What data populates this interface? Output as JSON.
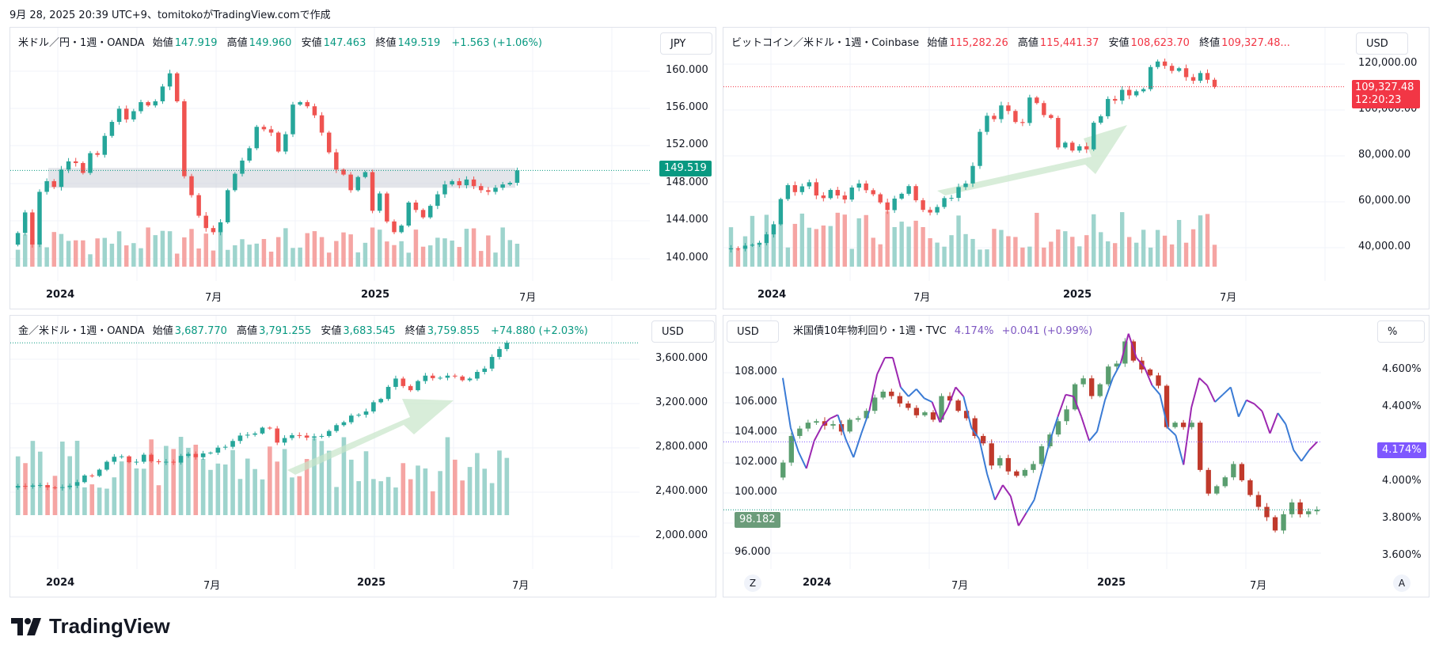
{
  "header": {
    "caption": "9月 28, 2025 20:39 UTC+9、tomitokoがTradingView.comで作成"
  },
  "footer": {
    "logo_text": "TradingView"
  },
  "colors": {
    "up": "#26a69a",
    "down": "#ef5350",
    "vol_up": "#9ed4cd",
    "vol_down": "#f5a5a3",
    "grid": "#f0f3fa",
    "accent": "#089981"
  },
  "panels": {
    "usdjpy": {
      "title": "米ドル／円・1週・OANDA",
      "o_label": "始値",
      "o": "147.919",
      "h_label": "高値",
      "h": "149.960",
      "l_label": "安値",
      "l": "147.463",
      "c_label": "終値",
      "c": "149.519",
      "change": "+1.563 (+1.06%)",
      "currency": "JPY",
      "last_price": "149.519",
      "y_labels": [
        "160.000",
        "156.000",
        "152.000",
        "148.000",
        "144.000",
        "140.000"
      ],
      "x_labels": [
        "2024",
        "7月",
        "2025",
        "7月"
      ]
    },
    "btcusd": {
      "title": "ビットコイン／米ドル・1週・Coinbase",
      "o_label": "始値",
      "o": "115,282.26",
      "h_label": "高値",
      "h": "115,441.37",
      "l_label": "安値",
      "l": "108,623.70",
      "c_label": "終値",
      "c": "109,327.48...",
      "currency": "USD",
      "last_price": "109,327.48",
      "countdown": "12:20:23",
      "y_labels": [
        "120,000.00",
        "100,000.00",
        "80,000.00",
        "60,000.00",
        "40,000.00"
      ],
      "x_labels": [
        "2024",
        "7月",
        "2025",
        "7月"
      ]
    },
    "xauusd": {
      "title": "金／米ドル・1週・OANDA",
      "o_label": "始値",
      "o": "3,687.770",
      "h_label": "高値",
      "h": "3,791.255",
      "l_label": "安値",
      "l": "3,683.545",
      "c_label": "終値",
      "c": "3,759.855",
      "change": "+74.880 (+2.03%)",
      "currency": "USD",
      "y_labels": [
        "3,600.000",
        "3,200.000",
        "2,800.000",
        "2,400.000",
        "2,000.000"
      ],
      "x_labels": [
        "2024",
        "7月",
        "2025",
        "7月"
      ]
    },
    "us10y": {
      "title": "米国債10年物利回り・1週・TVC",
      "value": "4.174%",
      "change": "+0.041 (+0.99%)",
      "left_currency": "USD",
      "right_unit": "%",
      "left_last": "98.182",
      "right_last": "4.174%",
      "left_y_labels": [
        "108.000",
        "106.000",
        "104.000",
        "102.000",
        "100.000",
        "98.000",
        "96.000"
      ],
      "right_y_labels": [
        "4.600%",
        "4.400%",
        "4.000%",
        "3.800%",
        "3.600%"
      ],
      "x_labels": [
        "2024",
        "7月",
        "2025",
        "7月"
      ],
      "z_button": "Z",
      "a_button": "A"
    }
  },
  "chart_data": [
    {
      "type": "candlestick",
      "name": "USDJPY",
      "ylim": [
        138,
        163
      ],
      "x_axis": [
        "2024",
        "7月",
        "2025",
        "7月"
      ],
      "close": [
        141.9,
        144.4,
        140.5,
        146.9,
        148.2,
        147.5,
        149.6,
        150.6,
        150.4,
        149.2,
        151.6,
        151.4,
        153.7,
        155.4,
        157.0,
        155.7,
        156.7,
        157.8,
        157.4,
        157.9,
        159.7,
        161.3,
        157.9,
        148.8,
        146.5,
        144.0,
        142.5,
        142.0,
        143.2,
        147.1,
        149.1,
        150.7,
        152.2,
        154.8,
        154.5,
        154.1,
        151.8,
        153.9,
        157.5,
        157.8,
        157.3,
        156.2,
        154.1,
        151.7,
        149.6,
        149.0,
        147.1,
        148.7,
        149.3,
        144.6,
        146.7,
        143.3,
        142.0,
        142.8,
        145.6,
        144.7,
        143.8,
        145.2,
        146.6,
        147.8,
        148.2,
        147.7,
        148.4,
        147.6,
        147.1,
        146.9,
        147.4,
        147.8,
        148.0,
        149.5
      ]
    },
    {
      "type": "candlestick",
      "name": "BTCUSD",
      "ylim": [
        35000,
        124000
      ],
      "x_axis": [
        "2024",
        "7月",
        "2025",
        "7月"
      ],
      "close": [
        42000,
        41800,
        43100,
        43500,
        44200,
        47800,
        52000,
        62500,
        68300,
        65400,
        67800,
        69500,
        64000,
        62900,
        66300,
        64000,
        62300,
        67300,
        69000,
        66200,
        64500,
        61100,
        57900,
        62700,
        64700,
        67900,
        62000,
        58000,
        56900,
        59200,
        62900,
        63000,
        67500,
        69000,
        76300,
        90500,
        97200,
        95800,
        101500,
        99200,
        94600,
        94200,
        104800,
        102500,
        97500,
        96300,
        84000,
        86000,
        82700,
        84500,
        83200,
        94300,
        97000,
        104200,
        103500,
        108000,
        105700,
        107400,
        108300,
        117500,
        119800,
        118000,
        115900,
        117000,
        113300,
        111800,
        115000,
        112200,
        109300
      ]
    },
    {
      "type": "candlestick",
      "name": "XAUUSD",
      "ylim": [
        1850,
        3800
      ],
      "x_axis": [
        "2024",
        "7月",
        "2025",
        "7月"
      ],
      "close": [
        2040,
        2030,
        2045,
        2050,
        2022,
        2015,
        2025,
        2042,
        2085,
        2165,
        2160,
        2235,
        2330,
        2390,
        2395,
        2325,
        2330,
        2415,
        2335,
        2325,
        2330,
        2320,
        2400,
        2425,
        2385,
        2430,
        2440,
        2500,
        2510,
        2580,
        2645,
        2655,
        2670,
        2740,
        2730,
        2560,
        2615,
        2650,
        2645,
        2620,
        2635,
        2640,
        2700,
        2770,
        2805,
        2885,
        2895,
        2935,
        3045,
        3085,
        3230,
        3330,
        3240,
        3190,
        3300,
        3365,
        3335,
        3340,
        3365,
        3355,
        3310,
        3330,
        3410,
        3450,
        3590,
        3685,
        3760
      ]
    },
    {
      "type": "candlestick+line",
      "name": "DXY vs US10Y",
      "left_ylim": [
        95,
        110
      ],
      "right_ylim": [
        3.55,
        4.75
      ],
      "x_axis": [
        "2024",
        "7月",
        "2025",
        "7月"
      ],
      "series": [
        {
          "name": "米国債10年物利回り",
          "axis": "right",
          "values": [
            4.52,
            4.25,
            4.12,
            4.03,
            4.18,
            4.26,
            4.3,
            4.32,
            4.19,
            4.09,
            4.22,
            4.34,
            4.54,
            4.63,
            4.63,
            4.47,
            4.42,
            4.46,
            4.41,
            4.39,
            4.28,
            4.36,
            4.47,
            4.42,
            4.25,
            4.19,
            4.0,
            3.86,
            3.94,
            3.88,
            3.72,
            3.79,
            3.86,
            4.02,
            4.18,
            4.31,
            4.43,
            4.42,
            4.31,
            4.18,
            4.23,
            4.4,
            4.52,
            4.6,
            4.76,
            4.63,
            4.58,
            4.48,
            4.43,
            4.25,
            4.21,
            4.05,
            4.36,
            4.52,
            4.48,
            4.39,
            4.43,
            4.47,
            4.31,
            4.4,
            4.38,
            4.34,
            4.22,
            4.33,
            4.27,
            4.13,
            4.07,
            4.13,
            4.174
          ]
        }
      ],
      "close": [
        101.4,
        103.2,
        103.7,
        104.1,
        104.2,
        103.9,
        104.0,
        103.5,
        104.3,
        104.4,
        104.9,
        105.8,
        106.2,
        105.9,
        105.4,
        105.1,
        104.6,
        104.8,
        104.3,
        105.9,
        105.6,
        104.9,
        104.4,
        103.2,
        102.7,
        101.2,
        101.7,
        100.8,
        100.5,
        100.9,
        101.3,
        102.5,
        103.3,
        104.2,
        105.0,
        106.7,
        107.1,
        105.9,
        106.7,
        107.9,
        108.1,
        109.6,
        108.3,
        107.7,
        107.3,
        106.6,
        103.8,
        104.1,
        103.8,
        104.1,
        100.9,
        99.3,
        99.8,
        100.4,
        101.3,
        100.2,
        99.2,
        98.4,
        97.7,
        96.8,
        97.9,
        98.7,
        97.9,
        98.1,
        98.2
      ]
    }
  ]
}
